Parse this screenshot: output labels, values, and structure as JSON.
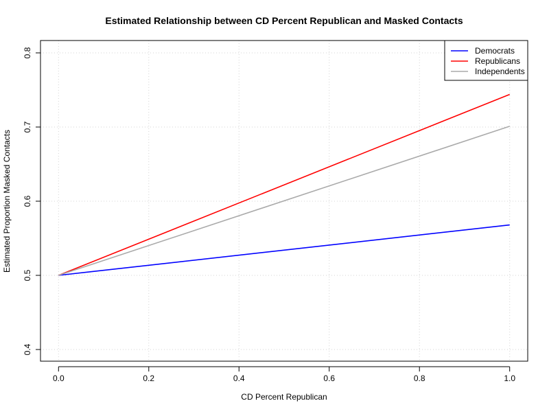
{
  "chart_data": {
    "type": "line",
    "title": "Estimated Relationship between CD Percent Republican and Masked Contacts",
    "xlabel": "CD Percent Republican",
    "ylabel": "Estimated Proportion Masked Contacts",
    "xlim": [
      0,
      1
    ],
    "ylim": [
      0.4,
      0.8
    ],
    "x_ticks": [
      "0.0",
      "0.2",
      "0.4",
      "0.6",
      "0.8",
      "1.0"
    ],
    "y_ticks": [
      "0.4",
      "0.5",
      "0.6",
      "0.7",
      "0.8"
    ],
    "grid": true,
    "legend_position": "top-right",
    "series": [
      {
        "name": "Democrats",
        "color": "#0000ff",
        "x": [
          0,
          1
        ],
        "y": [
          0.5,
          0.568
        ]
      },
      {
        "name": "Republicans",
        "color": "#ff0000",
        "x": [
          0,
          1
        ],
        "y": [
          0.5,
          0.744
        ]
      },
      {
        "name": "Independents",
        "color": "#aaaaaa",
        "x": [
          0,
          1
        ],
        "y": [
          0.5,
          0.701
        ]
      }
    ]
  }
}
